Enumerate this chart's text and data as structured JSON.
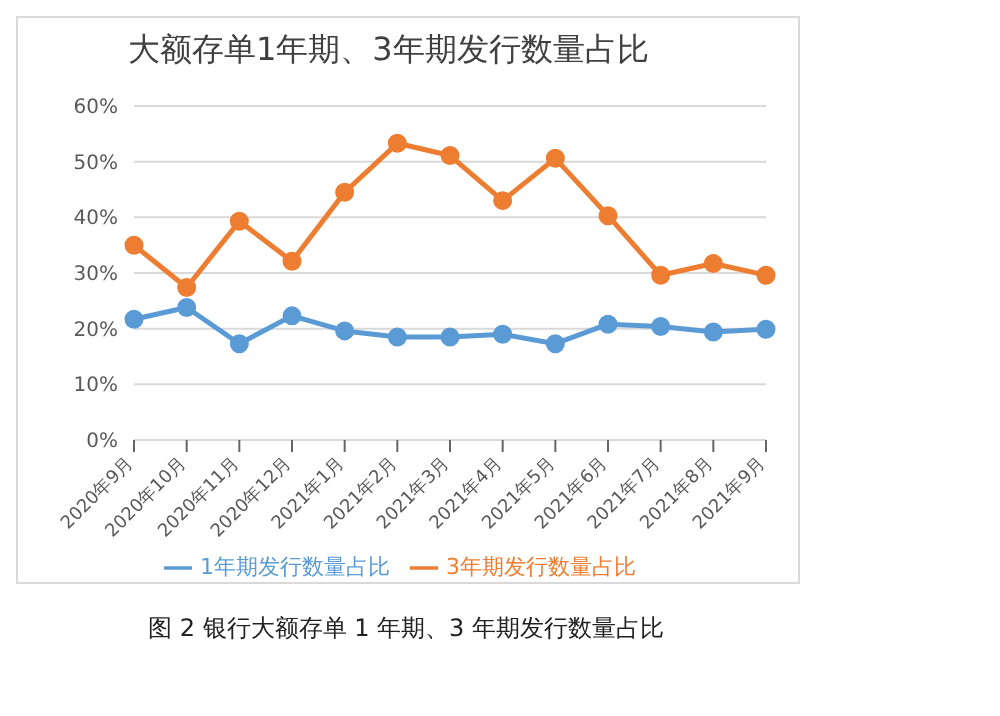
{
  "chart_data": {
    "type": "line",
    "title": "大额存单1年期、3年期发行数量占比",
    "categories": [
      "2020年9月",
      "2020年10月",
      "2020年11月",
      "2020年12月",
      "2021年1月",
      "2021年2月",
      "2021年3月",
      "2021年4月",
      "2021年5月",
      "2021年6月",
      "2021年7月",
      "2021年8月",
      "2021年9月"
    ],
    "series": [
      {
        "name": "1年期发行数量占比",
        "color": "#5b9bd5",
        "values": [
          21.7,
          23.8,
          17.3,
          22.3,
          19.6,
          18.5,
          18.5,
          19.0,
          17.3,
          20.8,
          20.4,
          19.4,
          19.9
        ]
      },
      {
        "name": "3年期发行数量占比",
        "color": "#ed7d31",
        "values": [
          35.0,
          27.4,
          39.3,
          32.1,
          44.5,
          53.3,
          51.1,
          43.0,
          50.6,
          40.3,
          29.6,
          31.7,
          29.6
        ]
      }
    ],
    "ylim": [
      0,
      60
    ],
    "yticks": [
      {
        "value": 0,
        "label": "0%"
      },
      {
        "value": 10,
        "label": "10%"
      },
      {
        "value": 20,
        "label": "20%"
      },
      {
        "value": 30,
        "label": "30%"
      },
      {
        "value": 40,
        "label": "40%"
      },
      {
        "value": 50,
        "label": "50%"
      },
      {
        "value": 60,
        "label": "60%"
      }
    ],
    "grid": "y",
    "legend": "bottom",
    "marker": "circle",
    "line_style": "solid",
    "annotations": [
      "图 2 银行大额存单 1 年期、3 年期发行数量占比"
    ]
  }
}
